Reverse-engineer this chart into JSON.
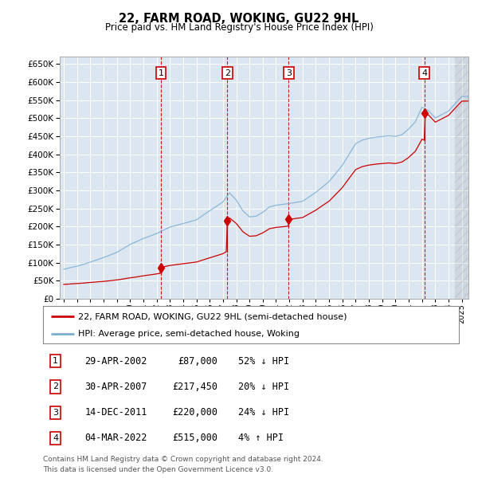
{
  "title": "22, FARM ROAD, WOKING, GU22 9HL",
  "subtitle": "Price paid vs. HM Land Registry's House Price Index (HPI)",
  "ylim": [
    0,
    670000
  ],
  "yticks": [
    0,
    50000,
    100000,
    150000,
    200000,
    250000,
    300000,
    350000,
    400000,
    450000,
    500000,
    550000,
    600000,
    650000
  ],
  "xlim_start": 1994.7,
  "xlim_end": 2025.5,
  "bg_color": "#dce6f1",
  "grid_color": "#ffffff",
  "red_color": "#cc0000",
  "blue_color": "#7aafd4",
  "transactions": [
    {
      "num": 1,
      "date_val": 2002.33,
      "price": 87000,
      "date_str": "29-APR-2002",
      "pct": "52%",
      "dir": "↓"
    },
    {
      "num": 2,
      "date_val": 2007.33,
      "price": 217450,
      "date_str": "30-APR-2007",
      "pct": "20%",
      "dir": "↓"
    },
    {
      "num": 3,
      "date_val": 2011.96,
      "price": 220000,
      "date_str": "14-DEC-2011",
      "pct": "24%",
      "dir": "↓"
    },
    {
      "num": 4,
      "date_val": 2022.17,
      "price": 515000,
      "date_str": "04-MAR-2022",
      "pct": "4%",
      "dir": "↑"
    }
  ],
  "legend_label_red": "22, FARM ROAD, WOKING, GU22 9HL (semi-detached house)",
  "legend_label_blue": "HPI: Average price, semi-detached house, Woking",
  "footer": "Contains HM Land Registry data © Crown copyright and database right 2024.\nThis data is licensed under the Open Government Licence v3.0.",
  "table_rows": [
    {
      "num": 1,
      "date": "29-APR-2002",
      "price": "£87,000",
      "pct": "52% ↓ HPI"
    },
    {
      "num": 2,
      "date": "30-APR-2007",
      "price": "£217,450",
      "pct": "20% ↓ HPI"
    },
    {
      "num": 3,
      "date": "14-DEC-2011",
      "price": "£220,000",
      "pct": "24% ↓ HPI"
    },
    {
      "num": 4,
      "date": "04-MAR-2022",
      "price": "£515,000",
      "pct": "4% ↑ HPI"
    }
  ],
  "hpi_anchors_x": [
    1995,
    1996,
    1997,
    1998,
    1999,
    2000,
    2001,
    2002,
    2003,
    2004,
    2005,
    2006,
    2007,
    2007.5,
    2008,
    2008.5,
    2009,
    2009.5,
    2010,
    2010.5,
    2011,
    2012,
    2013,
    2014,
    2015,
    2016,
    2016.5,
    2017,
    2017.5,
    2018,
    2018.5,
    2019,
    2019.5,
    2020,
    2020.5,
    2021,
    2021.5,
    2022,
    2022.5,
    2023,
    2023.5,
    2024,
    2024.5,
    2025
  ],
  "hpi_anchors_y": [
    82000,
    90000,
    102000,
    115000,
    130000,
    152000,
    168000,
    182000,
    200000,
    210000,
    220000,
    245000,
    270000,
    295000,
    275000,
    245000,
    228000,
    230000,
    240000,
    255000,
    260000,
    265000,
    270000,
    295000,
    325000,
    370000,
    400000,
    430000,
    440000,
    445000,
    448000,
    450000,
    452000,
    450000,
    455000,
    470000,
    490000,
    530000,
    520000,
    500000,
    510000,
    520000,
    540000,
    560000
  ],
  "red_pre_anchors_x": [
    1995,
    1996,
    1997,
    1998,
    1999,
    2000,
    2001,
    2002.2
  ],
  "red_pre_anchors_y": [
    40000,
    42000,
    45000,
    48000,
    52000,
    57000,
    63000,
    70000
  ]
}
